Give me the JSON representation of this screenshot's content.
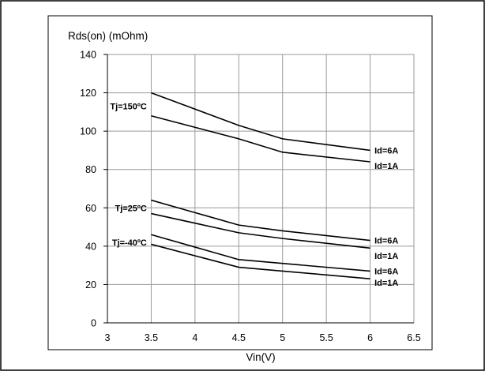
{
  "chart_data": {
    "type": "line",
    "title": "",
    "ylabel": "Rds(on) (mOhm)",
    "xlabel": "Vin(V)",
    "xlim": [
      3,
      6.5
    ],
    "ylim": [
      0,
      140
    ],
    "x_ticks": [
      "3",
      "3.5",
      "4",
      "4.5",
      "5",
      "5.5",
      "6",
      "6.5"
    ],
    "y_ticks": [
      "0",
      "20",
      "40",
      "60",
      "80",
      "100",
      "120",
      "140"
    ],
    "grid": true,
    "x": [
      3.5,
      4.5,
      5,
      6
    ],
    "series": [
      {
        "values": [
          120,
          103,
          96,
          90
        ]
      },
      {
        "values": [
          108,
          96,
          89,
          84
        ]
      },
      {
        "values": [
          64,
          51,
          48,
          43
        ]
      },
      {
        "values": [
          57,
          47,
          44,
          39
        ]
      },
      {
        "values": [
          46,
          33,
          31,
          27
        ]
      },
      {
        "values": [
          41,
          29,
          27,
          23
        ]
      }
    ],
    "annotations": [
      {
        "text": "Tj=150ºC",
        "x": 3.45,
        "y": 113
      },
      {
        "text": "Tj=25ºC",
        "x": 3.45,
        "y": 60
      },
      {
        "text": "Tj=-40ºC",
        "x": 3.45,
        "y": 42
      },
      {
        "text": "Id=6A",
        "x": 6.05,
        "y": 90
      },
      {
        "text": "Id=1A",
        "x": 6.05,
        "y": 82
      },
      {
        "text": "Id=6A",
        "x": 6.05,
        "y": 43
      },
      {
        "text": "Id=1A",
        "x": 6.05,
        "y": 35
      },
      {
        "text": "Id=6A",
        "x": 6.05,
        "y": 27
      },
      {
        "text": "Id=1A",
        "x": 6.05,
        "y": 21
      }
    ]
  }
}
